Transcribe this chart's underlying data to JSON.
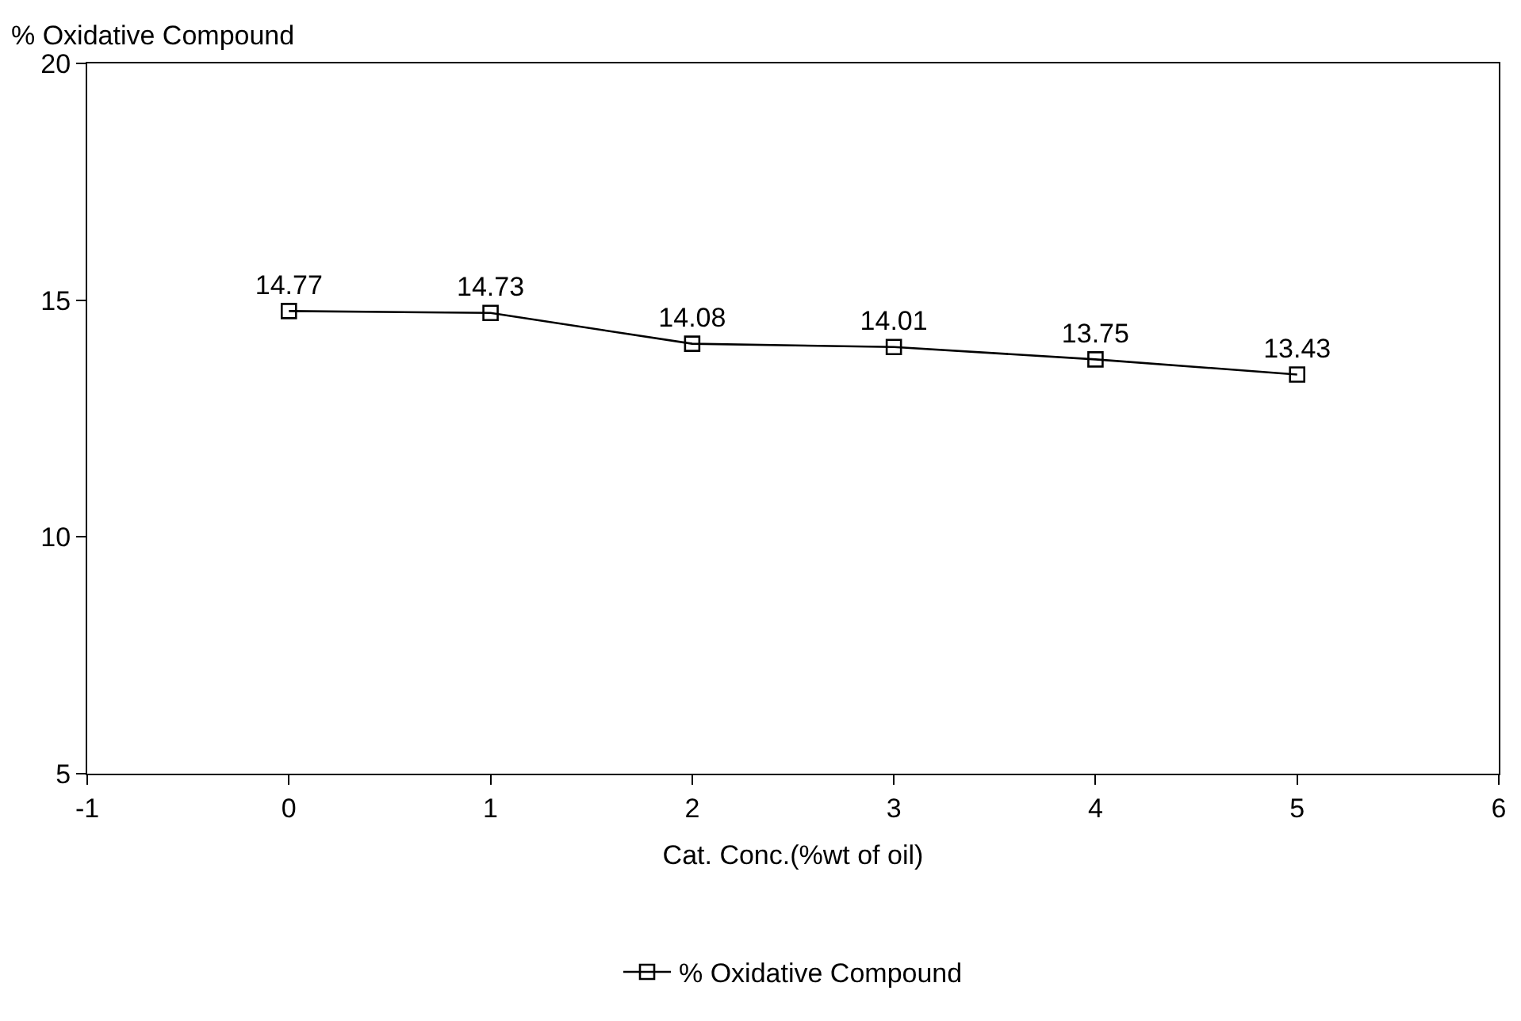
{
  "chart_data": {
    "type": "line",
    "ylabel": "% Oxidative Compound",
    "xlabel": "Cat. Conc.(%wt of oil)",
    "x": [
      0,
      1,
      2,
      3,
      4,
      5
    ],
    "series": [
      {
        "name": "% Oxidative Compound",
        "color": "#000000",
        "values": [
          14.77,
          14.73,
          14.08,
          14.01,
          13.75,
          13.43
        ]
      }
    ],
    "xlim": [
      -1,
      6
    ],
    "xticks": [
      -1,
      0,
      1,
      2,
      3,
      4,
      5,
      6
    ],
    "ylim": [
      5,
      20
    ],
    "yticks": [
      5,
      10,
      15,
      20
    ],
    "marker": "square",
    "line_style": "solid",
    "data_labels": true,
    "legend": "bottom",
    "grid": false
  }
}
